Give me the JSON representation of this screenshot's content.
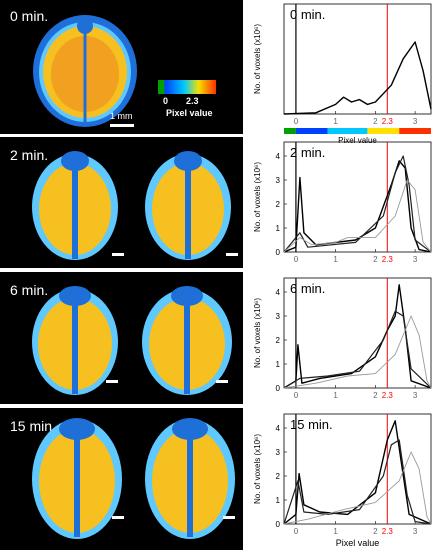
{
  "panels": [
    {
      "time": "0 min.",
      "scalebar": "1 mm"
    },
    {
      "time": "2 min.",
      "scalebar": ""
    },
    {
      "time": "6 min.",
      "scalebar": ""
    },
    {
      "time": "15 min.",
      "scalebar": ""
    }
  ],
  "legend": {
    "label": "Pixel value",
    "tick_min": "0",
    "tick_mid": "2.3",
    "colors": [
      "#00a000",
      "#0040ff",
      "#00c8ff",
      "#ffe000",
      "#ff3000"
    ]
  },
  "plots": {
    "ylabel": "No. of voxels (x10⁶)",
    "xlabel": "Pixel value",
    "xticks": [
      "0",
      "1",
      "2",
      "3"
    ],
    "threshold_label": "2.3",
    "threshold_color": "#ff0000",
    "colorbar_label": "Pixel value"
  },
  "chart_data": [
    {
      "type": "line",
      "title": "0 min.",
      "xlim": [
        -0.3,
        3.4
      ],
      "ylim": [
        0,
        4
      ],
      "series": [
        {
          "values": [
            [
              -0.3,
              0
            ],
            [
              0.5,
              0.05
            ],
            [
              1.0,
              0.4
            ],
            [
              1.2,
              0.7
            ],
            [
              1.4,
              0.5
            ],
            [
              1.6,
              0.6
            ],
            [
              1.8,
              0.4
            ],
            [
              2.0,
              0.5
            ],
            [
              2.4,
              1.2
            ],
            [
              2.7,
              2.3
            ],
            [
              3.0,
              3.0
            ],
            [
              3.2,
              1.8
            ],
            [
              3.4,
              0.2
            ]
          ]
        }
      ]
    },
    {
      "type": "line",
      "title": "2 min.",
      "xlim": [
        -0.3,
        3.4
      ],
      "ylim": [
        0,
        4
      ],
      "yticks": [
        0,
        1,
        2,
        3,
        4
      ],
      "series": [
        {
          "values": [
            [
              -0.3,
              0
            ],
            [
              0.0,
              0.2
            ],
            [
              0.1,
              3.1
            ],
            [
              0.2,
              0.8
            ],
            [
              0.5,
              0.3
            ],
            [
              1.5,
              0.5
            ],
            [
              2.0,
              1.0
            ],
            [
              2.4,
              2.8
            ],
            [
              2.6,
              3.8
            ],
            [
              2.75,
              3.5
            ],
            [
              2.9,
              1.0
            ],
            [
              3.1,
              0.1
            ],
            [
              3.4,
              0
            ]
          ]
        },
        {
          "values": [
            [
              -0.3,
              0
            ],
            [
              0.1,
              0.8
            ],
            [
              0.3,
              0.2
            ],
            [
              1.5,
              0.4
            ],
            [
              2.2,
              1.5
            ],
            [
              2.5,
              3.3
            ],
            [
              2.7,
              4.0
            ],
            [
              2.85,
              2.8
            ],
            [
              3.0,
              0.5
            ],
            [
              3.4,
              0
            ]
          ]
        },
        {
          "values": [
            [
              -0.3,
              0
            ],
            [
              0.1,
              0.6
            ],
            [
              0.4,
              0.3
            ],
            [
              1.0,
              0.4
            ],
            [
              1.3,
              0.6
            ],
            [
              2.0,
              0.6
            ],
            [
              2.5,
              1.5
            ],
            [
              2.8,
              3.0
            ],
            [
              3.0,
              2.6
            ],
            [
              3.2,
              0.4
            ],
            [
              3.4,
              0
            ]
          ]
        }
      ]
    },
    {
      "type": "line",
      "title": "6 min.",
      "xlim": [
        -0.3,
        3.4
      ],
      "ylim": [
        0,
        4
      ],
      "yticks": [
        0,
        1,
        2,
        3,
        4
      ],
      "series": [
        {
          "values": [
            [
              -0.3,
              0
            ],
            [
              0.0,
              0.3
            ],
            [
              0.05,
              1.8
            ],
            [
              0.15,
              0.2
            ],
            [
              0.6,
              0.4
            ],
            [
              1.4,
              0.6
            ],
            [
              2.0,
              1.3
            ],
            [
              2.3,
              2.4
            ],
            [
              2.5,
              3.0
            ],
            [
              2.6,
              4.3
            ],
            [
              2.75,
              2.5
            ],
            [
              2.9,
              0.3
            ],
            [
              3.4,
              0
            ]
          ]
        },
        {
          "values": [
            [
              -0.3,
              0
            ],
            [
              0.1,
              0.4
            ],
            [
              0.8,
              0.5
            ],
            [
              1.6,
              0.7
            ],
            [
              2.2,
              2.0
            ],
            [
              2.5,
              3.2
            ],
            [
              2.7,
              3.0
            ],
            [
              2.9,
              0.8
            ],
            [
              3.4,
              0
            ]
          ]
        },
        {
          "values": [
            [
              -0.3,
              0
            ],
            [
              0.5,
              0.2
            ],
            [
              1.3,
              0.5
            ],
            [
              2.0,
              0.6
            ],
            [
              2.5,
              1.4
            ],
            [
              2.9,
              3.0
            ],
            [
              3.1,
              2.2
            ],
            [
              3.3,
              0.3
            ],
            [
              3.4,
              0
            ]
          ]
        }
      ]
    },
    {
      "type": "line",
      "title": "15 min.",
      "xlim": [
        -0.3,
        3.4
      ],
      "ylim": [
        0,
        4
      ],
      "yticks": [
        0,
        1,
        2,
        3,
        4
      ],
      "series": [
        {
          "values": [
            [
              -0.3,
              0
            ],
            [
              0.0,
              0.4
            ],
            [
              0.08,
              2.1
            ],
            [
              0.2,
              0.8
            ],
            [
              0.6,
              0.5
            ],
            [
              1.3,
              0.4
            ],
            [
              2.0,
              1.3
            ],
            [
              2.3,
              3.5
            ],
            [
              2.5,
              4.3
            ],
            [
              2.65,
              2.6
            ],
            [
              2.85,
              0.4
            ],
            [
              3.4,
              0
            ]
          ]
        },
        {
          "values": [
            [
              -0.3,
              0
            ],
            [
              0.05,
              1.8
            ],
            [
              0.2,
              0.5
            ],
            [
              0.8,
              0.4
            ],
            [
              1.6,
              0.6
            ],
            [
              2.2,
              2.0
            ],
            [
              2.4,
              3.3
            ],
            [
              2.6,
              3.5
            ],
            [
              2.8,
              1.2
            ],
            [
              3.0,
              0.1
            ],
            [
              3.4,
              0
            ]
          ]
        },
        {
          "values": [
            [
              -0.3,
              0
            ],
            [
              0.3,
              0.2
            ],
            [
              1.2,
              0.6
            ],
            [
              2.0,
              0.9
            ],
            [
              2.6,
              1.8
            ],
            [
              2.9,
              3.0
            ],
            [
              3.1,
              2.3
            ],
            [
              3.3,
              0.3
            ],
            [
              3.4,
              0
            ]
          ]
        }
      ]
    }
  ]
}
